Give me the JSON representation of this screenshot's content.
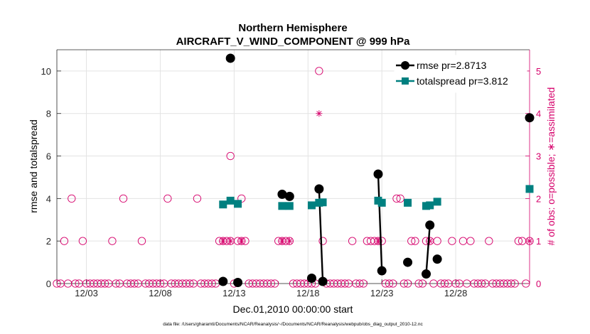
{
  "chart_data": {
    "type": "line",
    "title": "Northern Hemisphere",
    "subtitle": "AIRCRAFT_V_WIND_COMPONENT @ 999 hPa",
    "xlabel": "Dec.01,2010 00:00:00 start",
    "ylabel": "rmse and totalspread",
    "y2label": "# of obs: o=possible; ∗=assimilated",
    "footnote": "data file: /Users/gharamti/Documents/NCAR/Reanalysis/~/Documents/NCAR/Reanalysis/webpub/obs_diag_output_2010-12.nc",
    "xlim": [
      1,
      33
    ],
    "ylim": [
      0,
      11
    ],
    "y2lim": [
      0,
      5.5
    ],
    "xticks": [
      3,
      8,
      13,
      18,
      23,
      28
    ],
    "xtick_labels": [
      "12/03",
      "12/08",
      "12/13",
      "12/18",
      "12/23",
      "12/28"
    ],
    "yticks": [
      0,
      2,
      4,
      6,
      8,
      10
    ],
    "y2ticks": [
      0,
      1,
      2,
      3,
      4,
      5
    ],
    "grid": true,
    "legend_position": "top-right",
    "colors": {
      "rmse": "#000000",
      "totalspread": "#008080",
      "obs": "#d6006b"
    },
    "series": [
      {
        "name": "rmse",
        "legend": "rmse pr=2.8713",
        "marker": "circle",
        "points": [
          [
            12.25,
            0.1
          ],
          [
            12.75,
            10.6
          ],
          [
            13.25,
            0.05
          ],
          [
            16.25,
            4.2
          ],
          [
            16.75,
            4.1
          ],
          [
            18.25,
            0.25
          ],
          [
            18.75,
            4.45
          ],
          [
            19.0,
            0.1
          ],
          [
            22.75,
            5.15
          ],
          [
            23.0,
            0.6
          ],
          [
            24.75,
            1.0
          ],
          [
            26.0,
            0.45
          ],
          [
            26.25,
            2.75
          ],
          [
            26.75,
            1.15
          ],
          [
            33.0,
            7.8
          ]
        ],
        "segments": [
          [
            [
              18.75,
              4.45
            ],
            [
              19.0,
              0.1
            ]
          ],
          [
            [
              22.75,
              5.15
            ],
            [
              23.0,
              0.6
            ]
          ],
          [
            [
              26.0,
              0.45
            ],
            [
              26.25,
              2.75
            ]
          ]
        ]
      },
      {
        "name": "totalspread",
        "legend": "totalspread pr=3.812",
        "marker": "square",
        "points": [
          [
            12.25,
            3.72
          ],
          [
            12.75,
            3.9
          ],
          [
            13.25,
            3.75
          ],
          [
            16.25,
            3.65
          ],
          [
            16.75,
            3.65
          ],
          [
            18.25,
            3.68
          ],
          [
            18.75,
            3.8
          ],
          [
            19.0,
            3.82
          ],
          [
            22.75,
            3.9
          ],
          [
            23.0,
            3.8
          ],
          [
            24.75,
            3.8
          ],
          [
            26.0,
            3.65
          ],
          [
            26.25,
            3.68
          ],
          [
            26.75,
            3.85
          ],
          [
            33.0,
            4.45
          ]
        ],
        "segments": [
          [
            [
              18.75,
              3.8
            ],
            [
              19.0,
              3.82
            ]
          ],
          [
            [
              22.75,
              3.9
            ],
            [
              23.0,
              3.8
            ]
          ]
        ]
      }
    ],
    "obs_possible": {
      "ones": [
        1.5,
        2.75,
        4.75,
        6.75,
        12.0,
        12.25,
        12.5,
        12.75,
        13.25,
        13.5,
        13.75,
        16.0,
        16.25,
        16.5,
        16.75,
        19.0,
        21.0,
        22.0,
        22.25,
        22.5,
        22.75,
        23.0,
        25.0,
        25.25,
        26.0,
        26.25,
        26.75,
        27.75,
        28.5,
        29.0,
        30.25,
        32.25,
        32.5,
        33.0
      ],
      "twos": [
        2.0,
        5.5,
        8.5,
        10.5,
        24.0,
        24.25
      ],
      "others": [
        [
          12.75,
          3
        ],
        [
          13.5,
          2
        ],
        [
          18.75,
          5
        ]
      ]
    },
    "obs_assimilated": [
      [
        12.25,
        1
      ],
      [
        12.75,
        1
      ],
      [
        13.5,
        1
      ],
      [
        16.25,
        1
      ],
      [
        16.75,
        1
      ],
      [
        18.75,
        4
      ],
      [
        22.75,
        1
      ],
      [
        26.25,
        1
      ],
      [
        33.0,
        1
      ]
    ]
  }
}
